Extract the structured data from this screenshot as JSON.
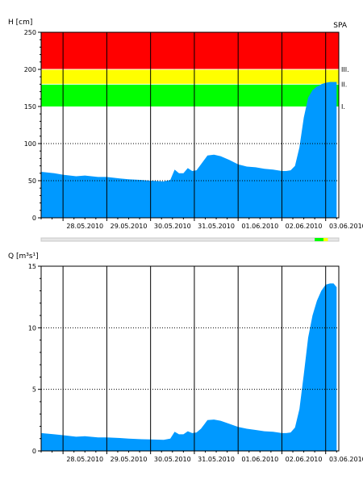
{
  "chart_data": [
    {
      "type": "area",
      "ylabel": "H [cm]",
      "station": "SPA",
      "ylim": [
        0,
        250
      ],
      "yticks": [
        0,
        50,
        100,
        150,
        200,
        250
      ],
      "x_dates": [
        "28.05.2010",
        "29.05.2010",
        "30.05.2010",
        "31.05.2010",
        "01.06.2010",
        "02.06.2010",
        "03.06.2010"
      ],
      "xlim_days": [
        27.5,
        34.3
      ],
      "grid": "dotted horizontal at 50 and 100, solid vertical at each day",
      "bands": [
        {
          "name": "I.",
          "from": 150,
          "to": 180,
          "color": "#00ff00"
        },
        {
          "name": "II.",
          "from": 180,
          "to": 200,
          "color": "#ffff00"
        },
        {
          "name": "III.",
          "from": 200,
          "to": 250,
          "color": "#ff0000"
        }
      ],
      "fill_color": "#0099ff",
      "series": [
        {
          "x": [
            27.5,
            27.8,
            28.0,
            28.3,
            28.5,
            28.8,
            29.0,
            29.3,
            29.5,
            29.8,
            30.0,
            30.3,
            30.45,
            30.55,
            30.65,
            30.75,
            30.85,
            30.95,
            31.05,
            31.15,
            31.3,
            31.45,
            31.6,
            31.8,
            32.0,
            32.2,
            32.4,
            32.6,
            32.8,
            33.0,
            33.1,
            33.2,
            33.3,
            33.4,
            33.5,
            33.6,
            33.7,
            33.8,
            33.85,
            33.9,
            34.0,
            34.1,
            34.18,
            34.25
          ],
          "y": [
            62,
            60,
            58,
            56,
            57,
            55,
            55,
            53,
            52,
            51,
            50,
            49,
            51,
            65,
            60,
            60,
            67,
            63,
            64,
            72,
            84,
            85,
            83,
            78,
            72,
            69,
            68,
            66,
            65,
            63,
            63,
            64,
            70,
            95,
            135,
            162,
            172,
            177,
            178,
            180,
            182,
            183,
            183,
            183
          ]
        }
      ]
    },
    {
      "type": "area",
      "ylabel": "Q [m³s¹]",
      "ylim": [
        0,
        15
      ],
      "yticks": [
        0,
        5,
        10,
        15
      ],
      "x_dates": [
        "28.05.2010",
        "29.05.2010",
        "30.05.2010",
        "31.05.2010",
        "01.06.2010",
        "02.06.2010",
        "03.06.2010"
      ],
      "xlim_days": [
        27.5,
        34.3
      ],
      "grid": "dotted horizontal at 5 and 10, solid vertical at each day",
      "fill_color": "#0099ff",
      "series": [
        {
          "x": [
            27.5,
            27.8,
            28.0,
            28.3,
            28.5,
            28.8,
            29.0,
            29.3,
            29.5,
            29.8,
            30.0,
            30.3,
            30.45,
            30.55,
            30.65,
            30.75,
            30.85,
            30.95,
            31.05,
            31.15,
            31.3,
            31.45,
            31.6,
            31.8,
            32.0,
            32.2,
            32.4,
            32.6,
            32.8,
            33.0,
            33.1,
            33.2,
            33.3,
            33.4,
            33.5,
            33.6,
            33.7,
            33.8,
            33.9,
            34.0,
            34.1,
            34.18,
            34.25
          ],
          "y": [
            1.45,
            1.35,
            1.28,
            1.15,
            1.2,
            1.1,
            1.1,
            1.05,
            1.0,
            0.95,
            0.93,
            0.9,
            1.0,
            1.55,
            1.35,
            1.35,
            1.6,
            1.45,
            1.5,
            1.8,
            2.5,
            2.55,
            2.45,
            2.2,
            1.95,
            1.8,
            1.7,
            1.6,
            1.55,
            1.45,
            1.45,
            1.5,
            1.9,
            3.4,
            6.2,
            9.2,
            11.0,
            12.2,
            13.0,
            13.5,
            13.6,
            13.6,
            13.3
          ]
        }
      ]
    }
  ],
  "timebar": {
    "segments": [
      {
        "from_day": 33.75,
        "to_day": 33.95,
        "color": "#00ff00"
      },
      {
        "from_day": 33.95,
        "to_day": 34.05,
        "color": "#ffff00"
      }
    ]
  }
}
